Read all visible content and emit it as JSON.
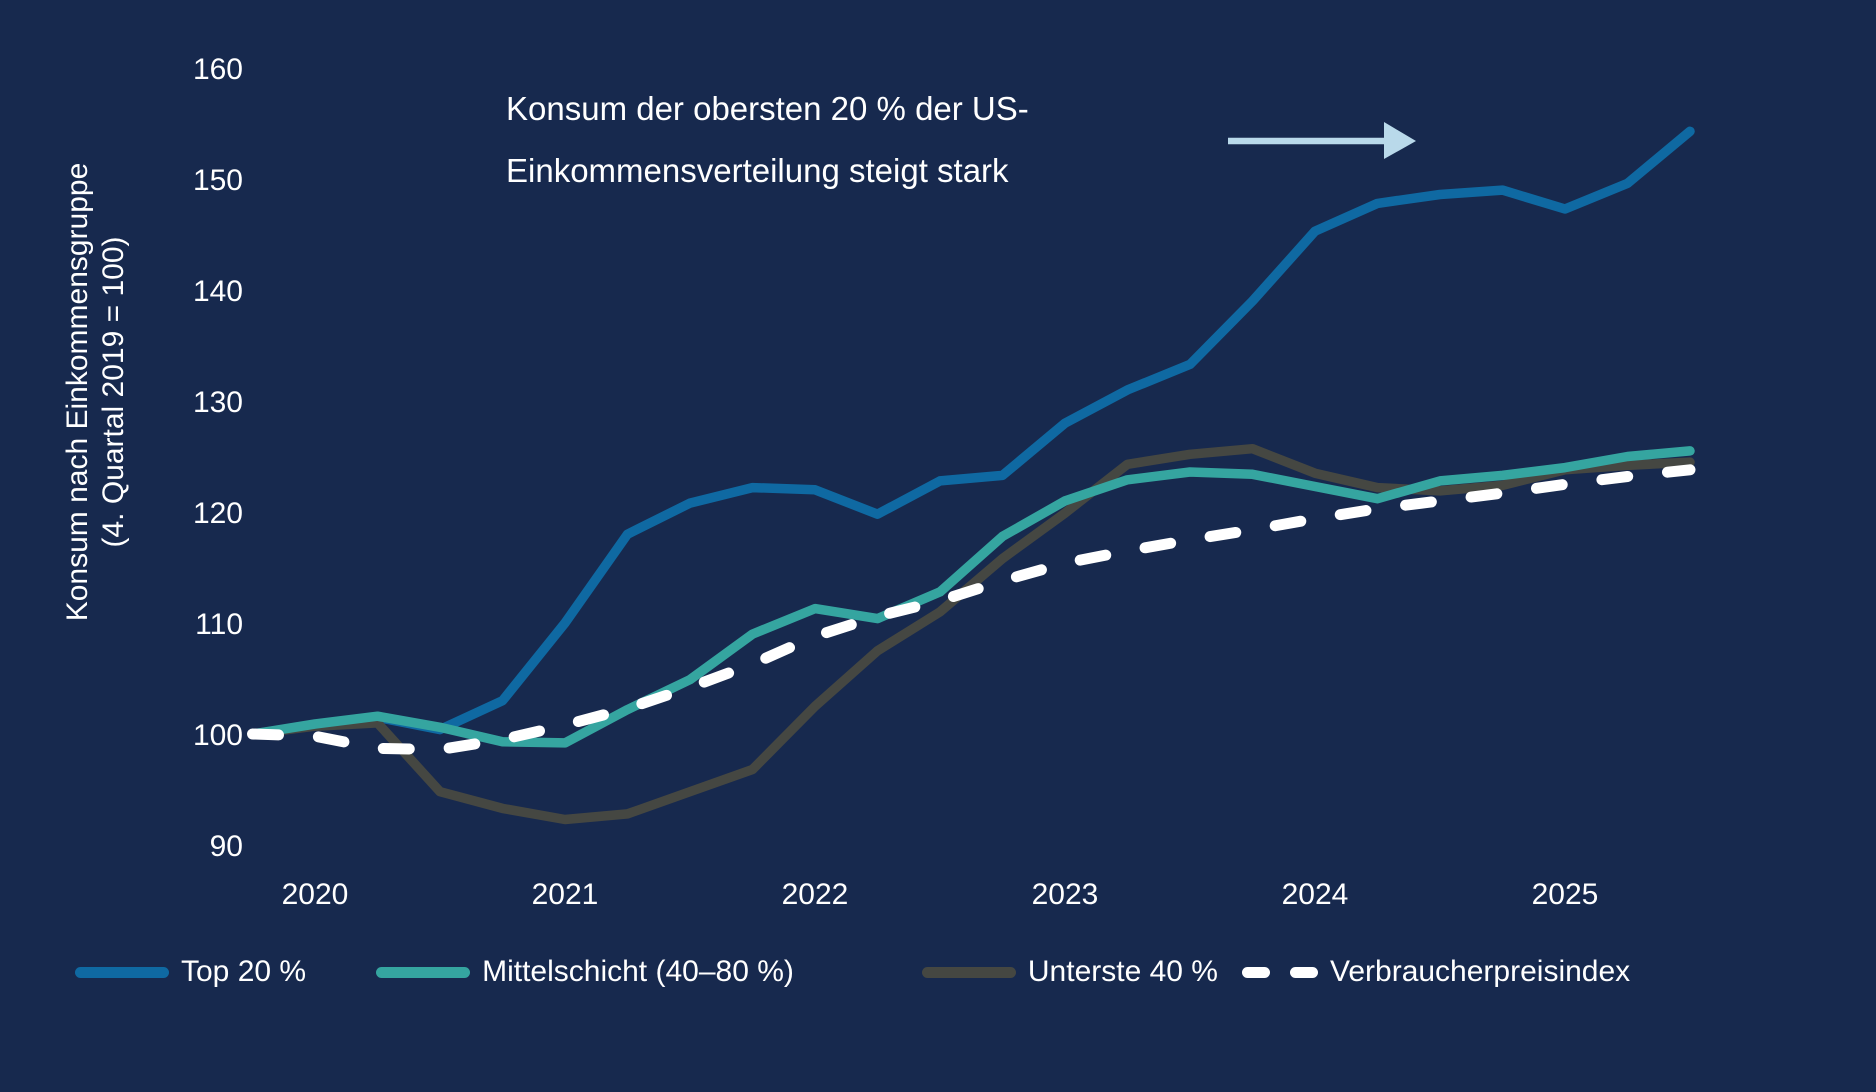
{
  "colors": {
    "background": "#17294e",
    "text": "#ffffff",
    "arrow": "#b9d9ea",
    "series_top20": "#0f69a2",
    "series_mittelschicht": "#35a5a0",
    "series_unterste40": "#454742",
    "series_vpi": "#ffffff"
  },
  "y_axis_label": {
    "line1": "Konsum nach Einkommensgruppe",
    "line2": "(4. Quartal 2019 = 100)"
  },
  "annotation": {
    "line1": "Konsum der obersten 20 % der US-",
    "line2": "Einkommensverteilung steigt stark",
    "arrow_direction": "right"
  },
  "chart_data": {
    "type": "line",
    "title": "Konsum der obersten 20 % der US-Einkommensverteilung steigt stark",
    "xlabel": "",
    "ylabel": "Konsum nach Einkommensgruppe (4. Quartal 2019 = 100)",
    "grid": false,
    "legend_position": "bottom",
    "xlim": [
      2019.75,
      2025.6
    ],
    "ylim": [
      90,
      160
    ],
    "xticks": [
      "2020",
      "2021",
      "2022",
      "2023",
      "2024",
      "2025"
    ],
    "xtick_years": [
      2020,
      2021,
      2022,
      2023,
      2024,
      2025
    ],
    "yticks": [
      90,
      100,
      110,
      120,
      130,
      140,
      150,
      160
    ],
    "x": [
      2019.75,
      2020.0,
      2020.25,
      2020.5,
      2020.75,
      2021.0,
      2021.25,
      2021.5,
      2021.75,
      2022.0,
      2022.25,
      2022.5,
      2022.75,
      2023.0,
      2023.25,
      2023.5,
      2023.75,
      2024.0,
      2024.25,
      2024.5,
      2024.75,
      2025.0,
      2025.25,
      2025.5
    ],
    "series": [
      {
        "name": "Top 20 %",
        "color": "#0f69a2",
        "dashed": false,
        "values": [
          100,
          100.8,
          101.5,
          100.4,
          103.0,
          110.0,
          118.0,
          120.8,
          122.2,
          122.0,
          119.8,
          122.8,
          123.3,
          128.0,
          131.0,
          133.3,
          139.0,
          145.3,
          147.8,
          148.6,
          149.0,
          147.3,
          149.6,
          154.3
        ]
      },
      {
        "name": "Mittelschicht (40–80 %)",
        "color": "#35a5a0",
        "dashed": false,
        "values": [
          100,
          100.9,
          101.6,
          100.6,
          99.3,
          99.2,
          102.2,
          104.9,
          109.0,
          111.3,
          110.4,
          112.8,
          117.8,
          121.0,
          122.9,
          123.6,
          123.4,
          122.3,
          121.2,
          122.8,
          123.3,
          124.0,
          125.0,
          125.5
        ]
      },
      {
        "name": "Unterste 40 %",
        "color": "#454742",
        "dashed": false,
        "values": [
          100,
          100.7,
          101.0,
          94.8,
          93.3,
          92.3,
          92.8,
          94.8,
          96.8,
          102.5,
          107.5,
          111.0,
          115.8,
          119.9,
          124.3,
          125.2,
          125.7,
          123.5,
          122.2,
          121.9,
          122.4,
          123.8,
          124.2,
          124.5
        ]
      },
      {
        "name": "Verbraucherpreisindex",
        "color": "#ffffff",
        "dashed": true,
        "values": [
          100,
          99.8,
          98.7,
          98.6,
          99.5,
          100.8,
          102.3,
          104.2,
          106.3,
          108.8,
          110.6,
          112.0,
          113.8,
          115.4,
          116.5,
          117.5,
          118.4,
          119.4,
          120.3,
          121.0,
          121.7,
          122.5,
          123.2,
          123.8
        ]
      }
    ]
  }
}
